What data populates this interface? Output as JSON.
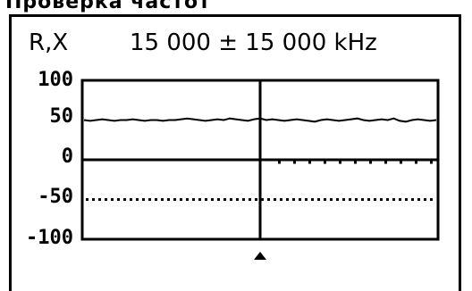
{
  "top_fragment": "Проверка частот",
  "header": {
    "param": "R,X",
    "frequency": "15 000 ± 15 000 kHz"
  },
  "chart_data": {
    "type": "line",
    "title": "",
    "xlabel": "",
    "ylabel": "",
    "ylim": [
      -100,
      100
    ],
    "yticks": [
      "100",
      "50",
      "0",
      "-50",
      "-100"
    ],
    "center_marker": true,
    "series": [
      {
        "values": [
          50,
          49,
          50,
          51,
          50,
          49,
          50,
          50,
          51,
          50,
          49,
          50,
          50,
          49,
          50,
          50,
          51,
          52,
          51,
          50,
          49,
          50,
          51,
          50,
          52,
          51,
          50,
          49,
          51,
          52,
          50,
          51,
          50,
          49,
          50,
          51,
          50,
          49,
          48,
          50,
          51,
          50,
          49,
          50,
          51,
          52,
          50,
          49,
          50,
          51,
          50,
          52,
          49,
          48,
          50,
          51,
          50,
          49,
          50
        ]
      },
      {
        "values": [
          0,
          0,
          0,
          0,
          0,
          0,
          0,
          0,
          0,
          0,
          0,
          0,
          0,
          0,
          0,
          0,
          0,
          0,
          0,
          0,
          0,
          0,
          0,
          0,
          0,
          0,
          0,
          0,
          0,
          0,
          0,
          0,
          0,
          0,
          0,
          0,
          0,
          0,
          0,
          0,
          0,
          0,
          0,
          0,
          0,
          0,
          0,
          0,
          0,
          0,
          0,
          0,
          0,
          0,
          0,
          0,
          0,
          0,
          0
        ]
      }
    ],
    "reference_lines": [
      50,
      0,
      -50
    ]
  }
}
